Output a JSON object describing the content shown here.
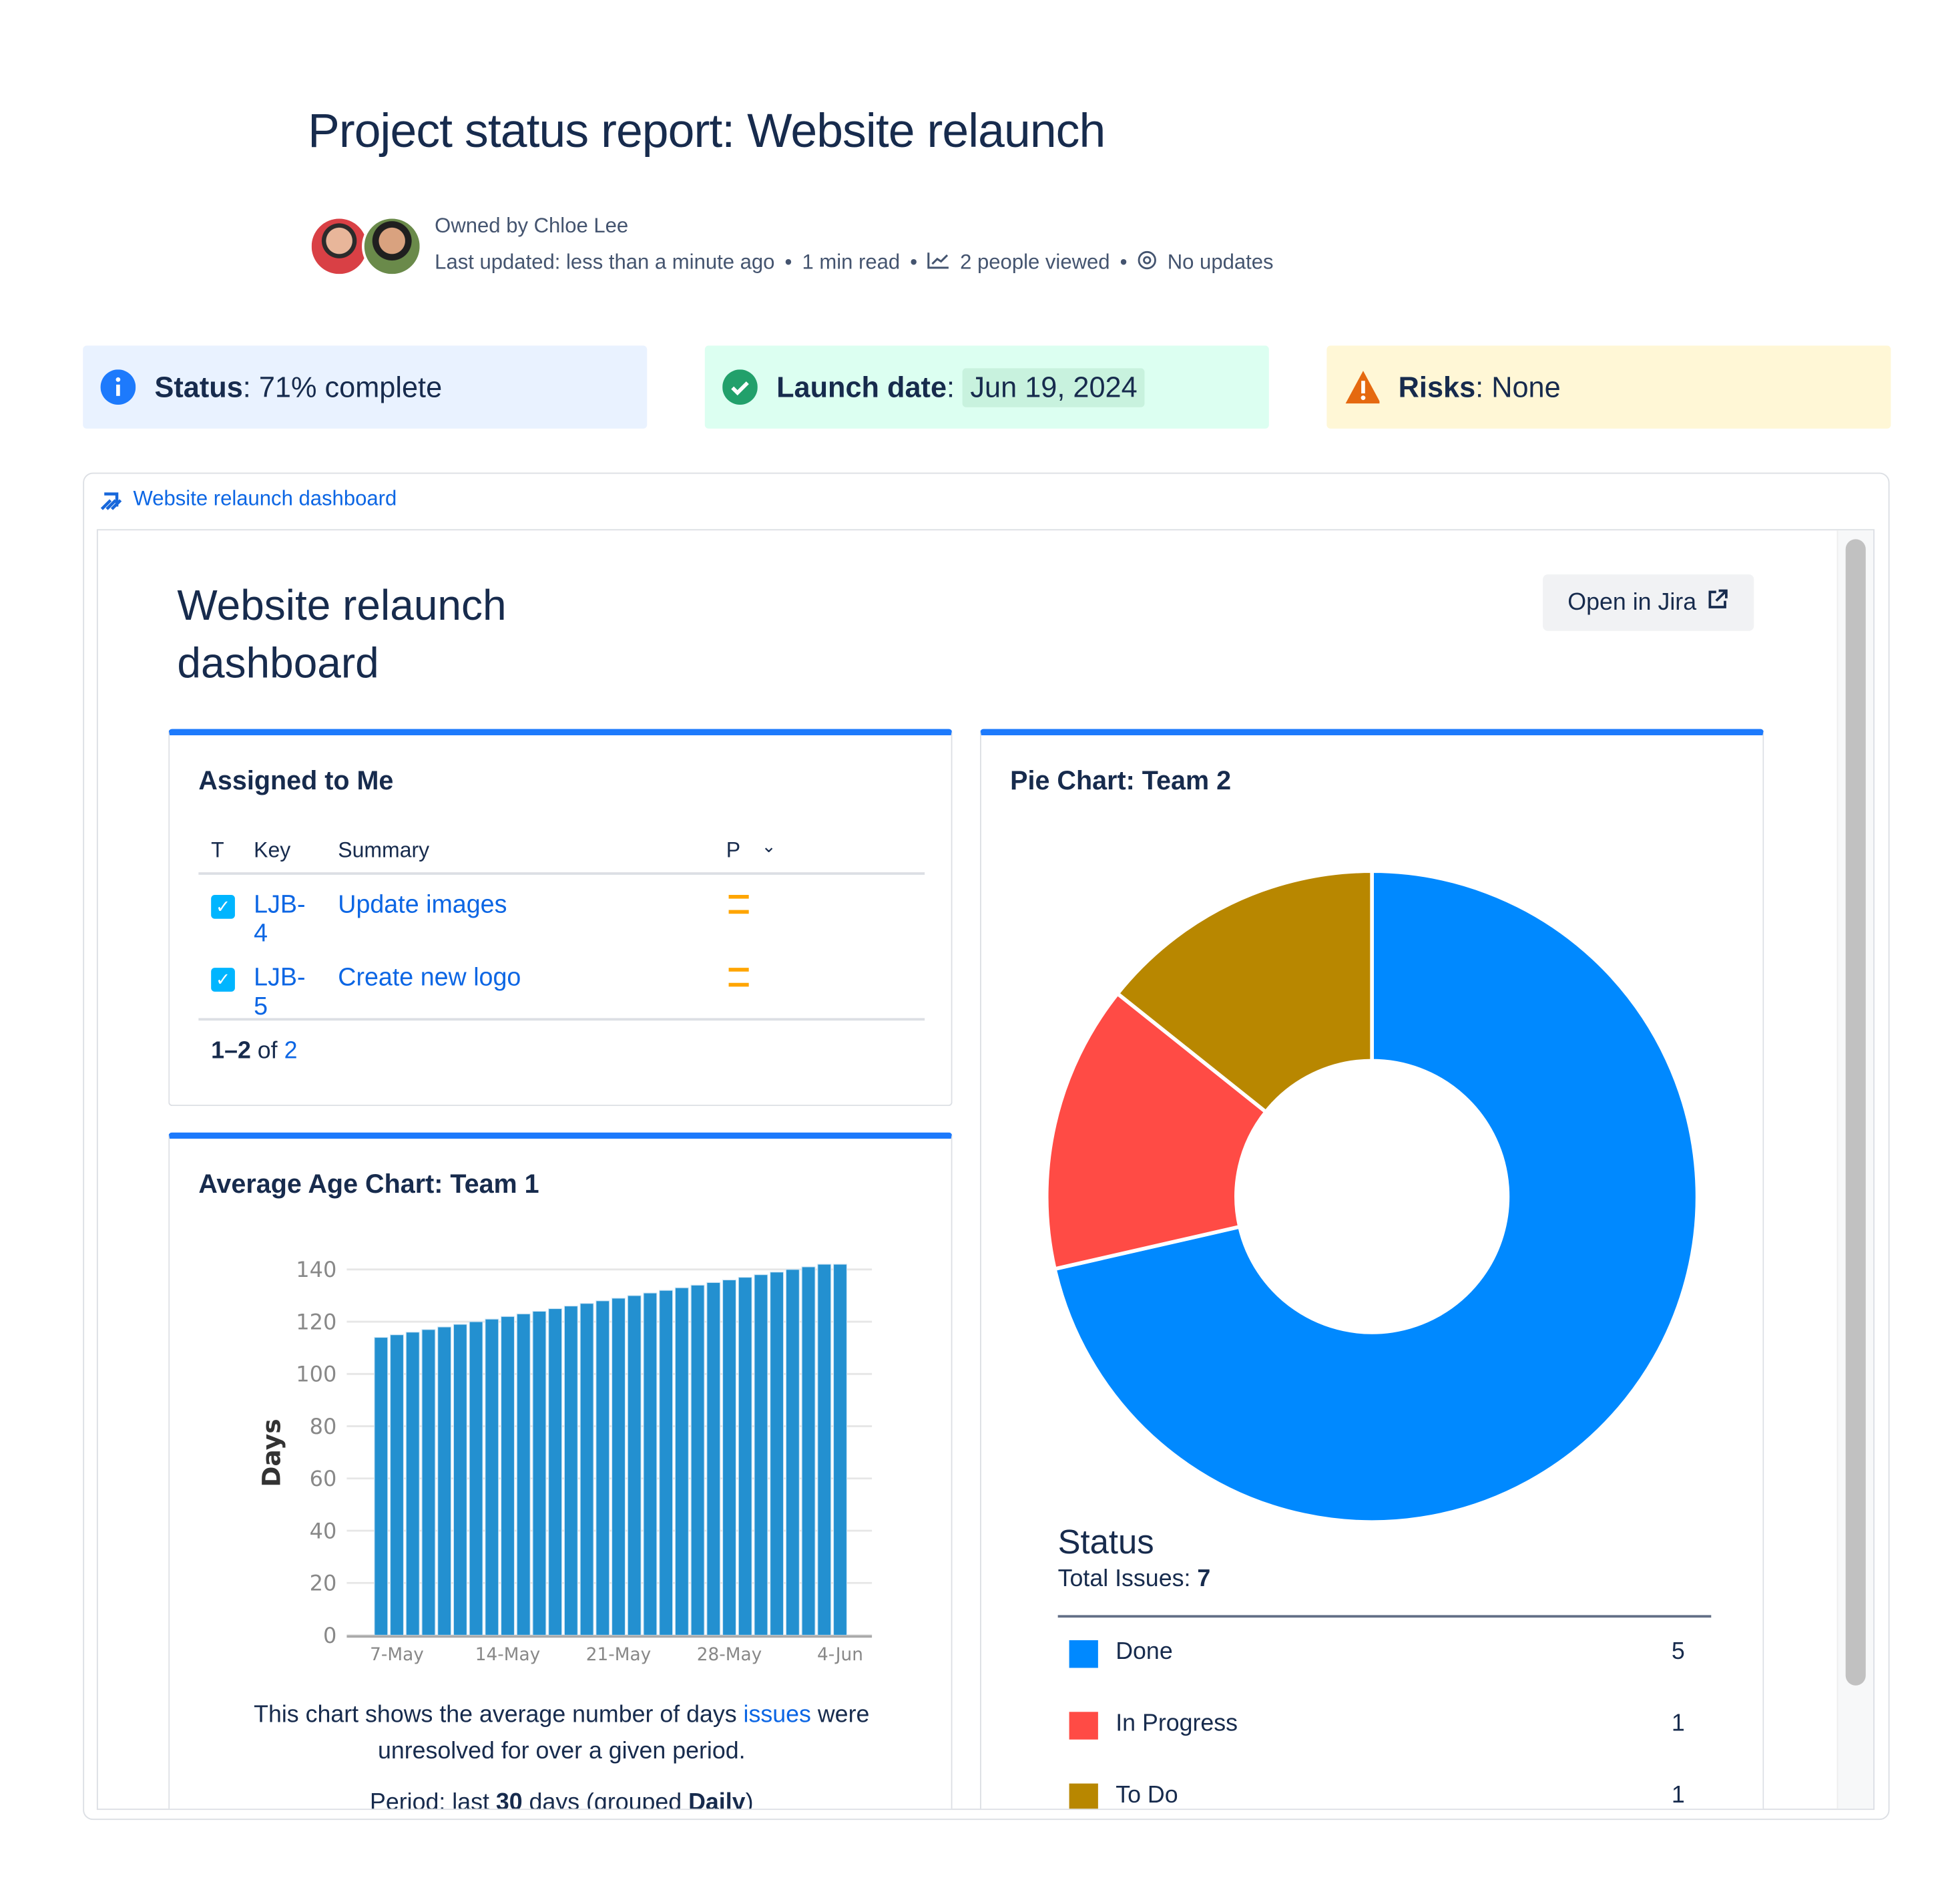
{
  "page": {
    "title": "Project status report: Website relaunch",
    "owner": "Owned by Chloe Lee",
    "meta": {
      "last_updated": "Last updated: less than a minute ago",
      "read_time": "1 min read",
      "views": "2 people viewed",
      "updates": "No updates",
      "separator": "•"
    }
  },
  "banners": [
    {
      "label": "Status",
      "value": "71% complete",
      "icon": "info-icon",
      "bg": "#e9f2ff",
      "icon_color": "#1d7afc"
    },
    {
      "label": "Launch date",
      "value": "Jun 19, 2024",
      "icon": "check-circle-icon",
      "bg": "#dcfff1",
      "icon_color": "#22a06b"
    },
    {
      "label": "Risks",
      "value": "None",
      "icon": "warning-icon",
      "bg": "#fff7d6",
      "icon_color": "#e56910"
    }
  ],
  "embed": {
    "link_label": "Website relaunch dashboard",
    "dashboard_title_line1": "Website relaunch",
    "dashboard_title_line2": "dashboard",
    "open_button": "Open in Jira"
  },
  "assigned": {
    "title": "Assigned to Me",
    "columns": [
      "T",
      "Key",
      "Summary",
      "P"
    ],
    "rows": [
      {
        "key": "LJB-4",
        "summary": "Update images",
        "type": "task",
        "priority": "medium"
      },
      {
        "key": "LJB-5",
        "summary": "Create new logo",
        "type": "task",
        "priority": "medium"
      }
    ],
    "pager_range": "1–2",
    "pager_of": "of",
    "pager_total": "2"
  },
  "age_chart": {
    "title": "Average Age Chart: Team 1",
    "desc_before": "This chart shows the average number of days ",
    "desc_link": "issues",
    "desc_after": " were unresolved for over a given period.",
    "period_prefix": "Period: last ",
    "period_days": "30",
    "period_mid": " days (grouped ",
    "period_group": "Daily",
    "period_suffix": ")"
  },
  "pie": {
    "title": "Pie Chart: Team 2",
    "legend_title": "Status",
    "total_label": "Total Issues: ",
    "total": "7"
  },
  "chart_data": [
    {
      "type": "bar",
      "title": "Average Age Chart: Team 1",
      "ylabel": "Days",
      "xlabel": "",
      "ylim": [
        0,
        140
      ],
      "yticks": [
        0,
        20,
        40,
        60,
        80,
        100,
        120,
        140
      ],
      "xtick_labels": [
        "7-May",
        "14-May",
        "21-May",
        "28-May",
        "4-Jun"
      ],
      "grid": true,
      "color": "#2390d0",
      "categories": [
        "6-May",
        "7-May",
        "8-May",
        "9-May",
        "10-May",
        "11-May",
        "12-May",
        "13-May",
        "14-May",
        "15-May",
        "16-May",
        "17-May",
        "18-May",
        "19-May",
        "20-May",
        "21-May",
        "22-May",
        "23-May",
        "24-May",
        "25-May",
        "26-May",
        "27-May",
        "28-May",
        "29-May",
        "30-May",
        "31-May",
        "1-Jun",
        "2-Jun",
        "3-Jun",
        "4-Jun"
      ],
      "values": [
        114,
        115,
        116,
        117,
        118,
        119,
        120,
        121,
        122,
        123,
        124,
        125,
        126,
        127,
        128,
        129,
        130,
        131,
        132,
        133,
        134,
        135,
        136,
        137,
        138,
        139,
        140,
        141,
        142,
        142
      ]
    },
    {
      "type": "pie",
      "title": "Pie Chart: Team 2",
      "donut": true,
      "legend": "bottom",
      "slices": [
        {
          "label": "Done",
          "value": 5,
          "color": "#0089ff"
        },
        {
          "label": "In Progress",
          "value": 1,
          "color": "#ff4b45"
        },
        {
          "label": "To Do",
          "value": 1,
          "color": "#b88700"
        }
      ]
    }
  ]
}
